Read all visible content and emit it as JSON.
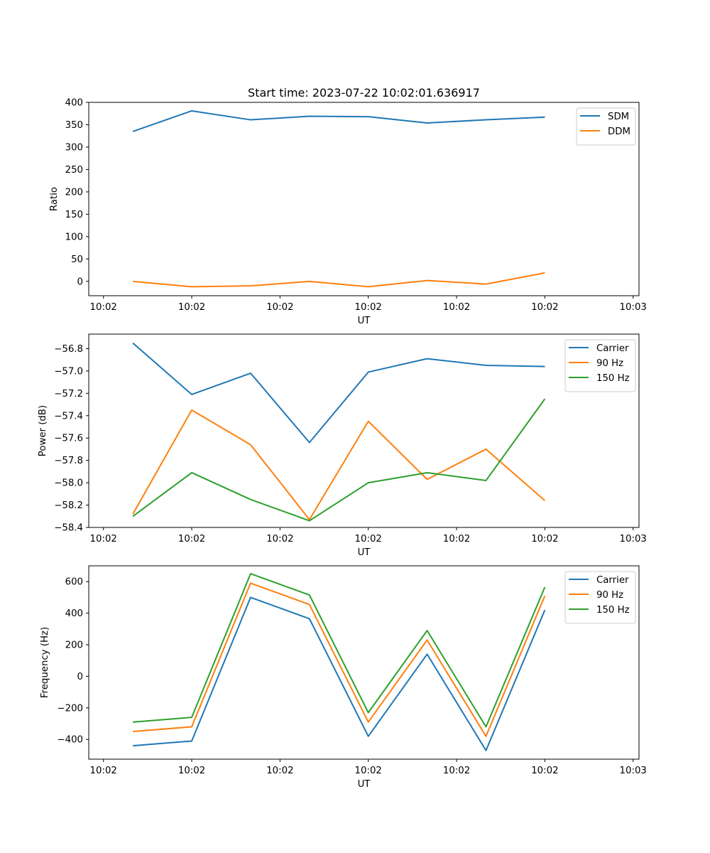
{
  "figure": {
    "title": "Start time: 2023-07-22 10:02:01.636917"
  },
  "chart_data": [
    {
      "type": "line",
      "xlabel": "UT",
      "ylabel": "Ratio",
      "ylim": [
        -32,
        400
      ],
      "yticks": [
        0,
        50,
        100,
        150,
        200,
        250,
        300,
        350,
        400
      ],
      "ytick_labels": [
        "0",
        "50",
        "100",
        "150",
        "200",
        "250",
        "300",
        "350",
        "400"
      ],
      "xlim": [
        -0.75,
        8.6
      ],
      "xticks": [
        -0.5,
        1.0,
        2.5,
        4.0,
        5.5,
        7.0,
        8.5
      ],
      "xtick_labels": [
        "10:02",
        "10:02",
        "10:02",
        "10:02",
        "10:02",
        "10:02",
        "10:03"
      ],
      "x": [
        0,
        1,
        2,
        3,
        4,
        5,
        6,
        7
      ],
      "legend": "top-right",
      "series": [
        {
          "name": "SDM",
          "color": "#1f77b4",
          "values": [
            335,
            381,
            361,
            369,
            368,
            354,
            361,
            367
          ]
        },
        {
          "name": "DDM",
          "color": "#ff7f0e",
          "values": [
            0,
            -12,
            -10,
            0,
            -12,
            2,
            -6,
            19
          ]
        }
      ]
    },
    {
      "type": "line",
      "xlabel": "UT",
      "ylabel": "Power (dB)",
      "ylim": [
        -58.4,
        -56.67
      ],
      "yticks": [
        -58.4,
        -58.2,
        -58.0,
        -57.8,
        -57.6,
        -57.4,
        -57.2,
        -57.0,
        -56.8
      ],
      "ytick_labels": [
        "−58.4",
        "−58.2",
        "−58.0",
        "−57.8",
        "−57.6",
        "−57.4",
        "−57.2",
        "−57.0",
        "−56.8"
      ],
      "xlim": [
        -0.75,
        8.6
      ],
      "xticks": [
        -0.5,
        1.0,
        2.5,
        4.0,
        5.5,
        7.0,
        8.5
      ],
      "xtick_labels": [
        "10:02",
        "10:02",
        "10:02",
        "10:02",
        "10:02",
        "10:02",
        "10:03"
      ],
      "x": [
        0,
        1,
        2,
        3,
        4,
        5,
        6,
        7
      ],
      "legend": "top-right",
      "series": [
        {
          "name": "Carrier",
          "color": "#1f77b4",
          "values": [
            -56.75,
            -57.21,
            -57.02,
            -57.64,
            -57.01,
            -56.89,
            -56.95,
            -56.96
          ]
        },
        {
          "name": "90 Hz",
          "color": "#ff7f0e",
          "values": [
            -58.28,
            -57.35,
            -57.66,
            -58.33,
            -57.45,
            -57.97,
            -57.7,
            -58.16
          ]
        },
        {
          "name": "150 Hz",
          "color": "#2ca02c",
          "values": [
            -58.3,
            -57.91,
            -58.15,
            -58.34,
            -58.0,
            -57.91,
            -57.98,
            -57.25
          ]
        }
      ]
    },
    {
      "type": "line",
      "xlabel": "UT",
      "ylabel": "Frequency (Hz)",
      "ylim": [
        -525,
        700
      ],
      "yticks": [
        -400,
        -200,
        0,
        200,
        400,
        600
      ],
      "ytick_labels": [
        "−400",
        "−200",
        "0",
        "200",
        "400",
        "600"
      ],
      "xlim": [
        -0.75,
        8.6
      ],
      "xticks": [
        -0.5,
        1.0,
        2.5,
        4.0,
        5.5,
        7.0,
        8.5
      ],
      "xtick_labels": [
        "10:02",
        "10:02",
        "10:02",
        "10:02",
        "10:02",
        "10:02",
        "10:03"
      ],
      "x": [
        0,
        1,
        2,
        3,
        4,
        5,
        6,
        7
      ],
      "legend": "top-right",
      "series": [
        {
          "name": "Carrier",
          "color": "#1f77b4",
          "values": [
            -440,
            -410,
            500,
            365,
            -380,
            140,
            -470,
            420
          ]
        },
        {
          "name": "90 Hz",
          "color": "#ff7f0e",
          "values": [
            -350,
            -320,
            590,
            455,
            -290,
            230,
            -380,
            510
          ]
        },
        {
          "name": "150 Hz",
          "color": "#2ca02c",
          "values": [
            -290,
            -260,
            650,
            515,
            -230,
            290,
            -320,
            565
          ]
        }
      ]
    }
  ]
}
